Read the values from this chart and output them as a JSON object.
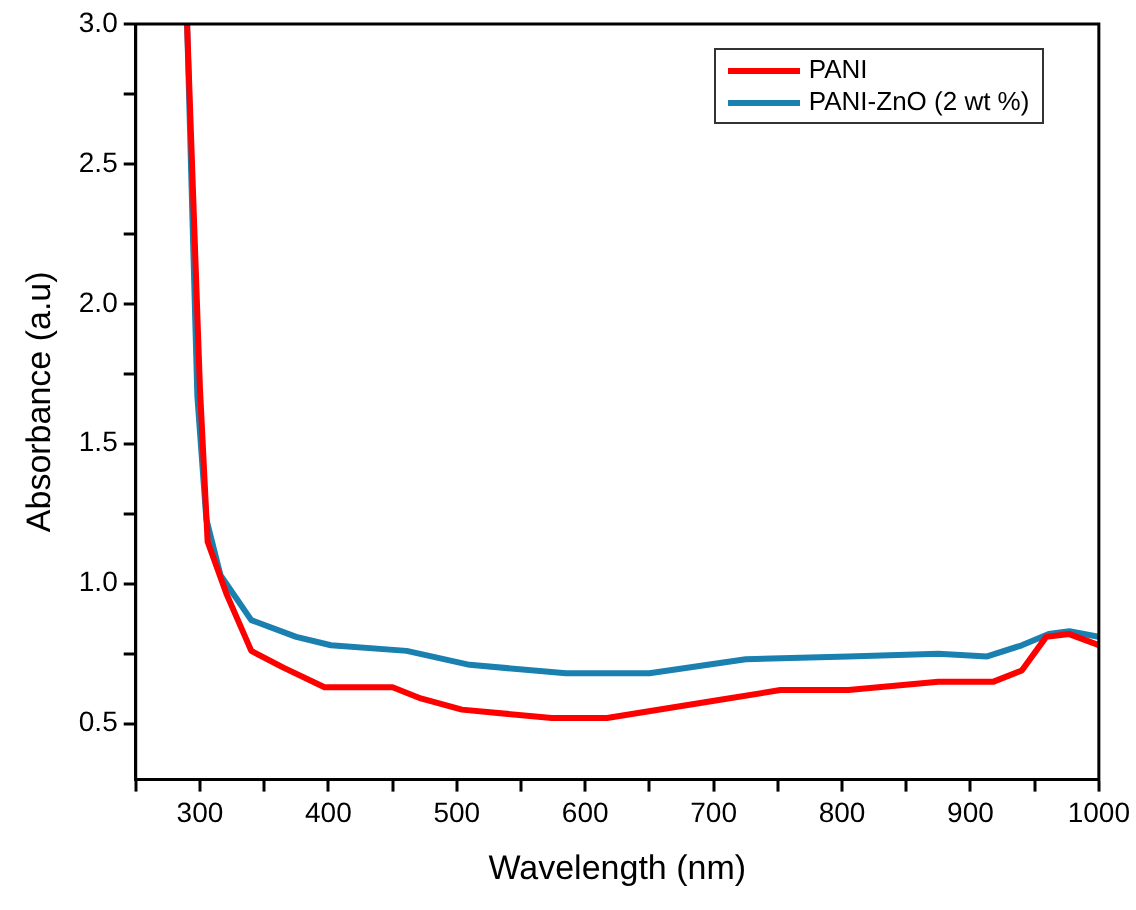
{
  "chart_data": {
    "type": "line",
    "xlabel": "Wavelength (nm)",
    "ylabel": "Absorbance (a.u)",
    "xlim": [
      250,
      1000
    ],
    "ylim": [
      0.3,
      3.0
    ],
    "xticks": [
      {
        "value": 250,
        "label": null
      },
      300,
      {
        "value": 350,
        "label": null
      },
      400,
      {
        "value": 450,
        "label": null
      },
      500,
      {
        "value": 550,
        "label": null
      },
      600,
      {
        "value": 650,
        "label": null
      },
      700,
      {
        "value": 750,
        "label": null
      },
      800,
      {
        "value": 850,
        "label": null
      },
      900,
      {
        "value": 950,
        "label": null
      },
      1000
    ],
    "yticks": [
      0.5,
      {
        "value": 0.75,
        "label": null
      },
      {
        "value": 1,
        "label": "1.0"
      },
      {
        "value": 1.25,
        "label": null
      },
      1.5,
      {
        "value": 1.75,
        "label": null
      },
      {
        "value": 2,
        "label": "2.0"
      },
      {
        "value": 2.25,
        "label": null
      },
      2.5,
      {
        "value": 2.75,
        "label": null
      },
      {
        "value": 3,
        "label": "3.0"
      }
    ],
    "grid": false,
    "legend": "top right",
    "marker": "none",
    "line_style": "solid",
    "series": [
      {
        "name": "PANI",
        "color": "#ff0000",
        "x": [
          290,
          300,
          306,
          321,
          340,
          365,
          397,
          450,
          472,
          504,
          574,
          617,
          698,
          752,
          805,
          875,
          918,
          940,
          959,
          977,
          1000
        ],
        "values": [
          3.0,
          1.7,
          1.15,
          0.96,
          0.76,
          0.7,
          0.63,
          0.63,
          0.59,
          0.55,
          0.52,
          0.52,
          0.58,
          0.62,
          0.62,
          0.65,
          0.65,
          0.69,
          0.81,
          0.82,
          0.78
        ]
      },
      {
        "name": "PANI-ZnO (2 wt %)",
        "color": "#1a80b0",
        "x": [
          290,
          298,
          305,
          316,
          340,
          375,
          402,
          461,
          510,
          585,
          650,
          725,
          805,
          875,
          913,
          940,
          961,
          977,
          1000
        ],
        "values": [
          3.0,
          1.67,
          1.23,
          1.03,
          0.87,
          0.81,
          0.78,
          0.76,
          0.71,
          0.68,
          0.68,
          0.73,
          0.74,
          0.75,
          0.74,
          0.78,
          0.82,
          0.83,
          0.81
        ]
      }
    ]
  }
}
